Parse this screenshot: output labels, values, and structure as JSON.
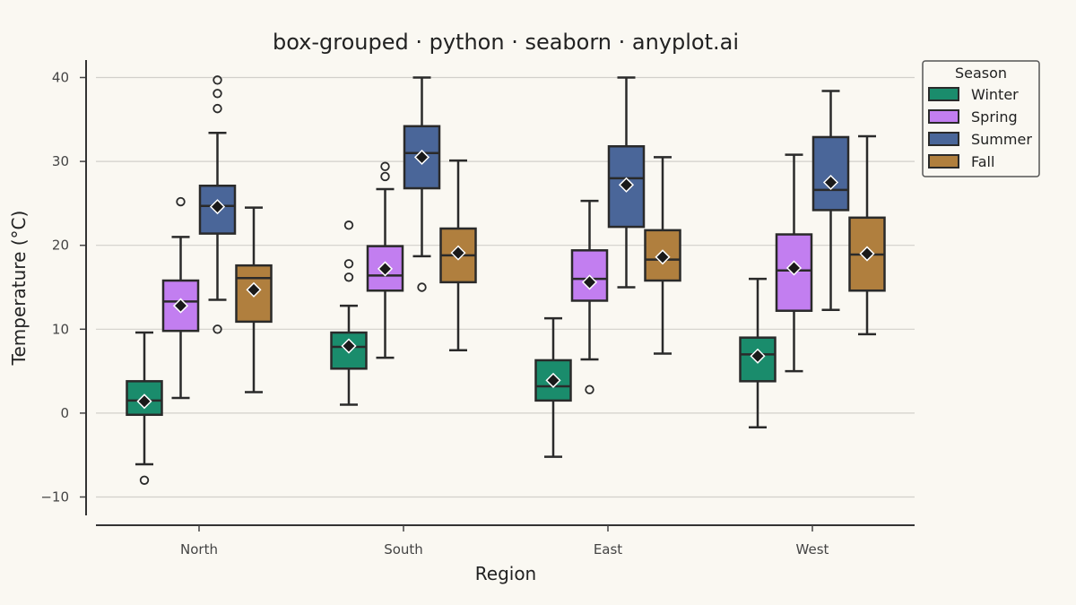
{
  "chart_data": {
    "type": "box",
    "title": "box-grouped · python · seaborn · anyplot.ai",
    "xlabel": "Region",
    "ylabel": "Temperature (°C)",
    "ylim": [
      -13.3,
      42
    ],
    "yticks": [
      -10,
      0,
      10,
      20,
      30,
      40
    ],
    "ytick_labels": [
      "−10",
      "0",
      "10",
      "20",
      "30",
      "40"
    ],
    "grid": "horizontal",
    "categories": [
      "North",
      "South",
      "East",
      "West"
    ],
    "legend": {
      "title": "Season",
      "placement": "top-right"
    },
    "series": [
      {
        "name": "Winter",
        "color": "#1a8c6c",
        "boxes": [
          {
            "whisker_low": -6.1,
            "q1": -0.2,
            "median": 1.5,
            "q3": 3.8,
            "whisker_high": 9.6,
            "mean": 1.4,
            "outliers": [
              -8.0
            ]
          },
          {
            "whisker_low": 1.0,
            "q1": 5.3,
            "median": 7.9,
            "q3": 9.6,
            "whisker_high": 12.8,
            "mean": 8.0,
            "outliers": [
              16.2,
              17.8,
              22.4
            ]
          },
          {
            "whisker_low": -5.2,
            "q1": 1.5,
            "median": 3.2,
            "q3": 6.3,
            "whisker_high": 11.3,
            "mean": 3.9,
            "outliers": []
          },
          {
            "whisker_low": -1.7,
            "q1": 3.8,
            "median": 7.0,
            "q3": 9.0,
            "whisker_high": 16.0,
            "mean": 6.8,
            "outliers": []
          }
        ]
      },
      {
        "name": "Spring",
        "color": "#c27ef0",
        "boxes": [
          {
            "whisker_low": 1.8,
            "q1": 9.8,
            "median": 13.3,
            "q3": 15.8,
            "whisker_high": 21.0,
            "mean": 12.8,
            "outliers": [
              25.2
            ]
          },
          {
            "whisker_low": 6.6,
            "q1": 14.6,
            "median": 16.4,
            "q3": 19.9,
            "whisker_high": 26.7,
            "mean": 17.2,
            "outliers": [
              28.2,
              29.4
            ]
          },
          {
            "whisker_low": 6.4,
            "q1": 13.4,
            "median": 16.0,
            "q3": 19.4,
            "whisker_high": 25.3,
            "mean": 15.6,
            "outliers": [
              2.8
            ]
          },
          {
            "whisker_low": 5.0,
            "q1": 12.2,
            "median": 17.0,
            "q3": 21.3,
            "whisker_high": 30.8,
            "mean": 17.3,
            "outliers": []
          }
        ]
      },
      {
        "name": "Summer",
        "color": "#4a6699",
        "boxes": [
          {
            "whisker_low": 13.5,
            "q1": 21.4,
            "median": 24.7,
            "q3": 27.1,
            "whisker_high": 33.4,
            "mean": 24.6,
            "outliers": [
              10.0,
              36.3,
              38.1,
              39.7
            ]
          },
          {
            "whisker_low": 18.7,
            "q1": 26.8,
            "median": 31.0,
            "q3": 34.2,
            "whisker_high": 40.0,
            "mean": 30.5,
            "outliers": [
              15.0
            ]
          },
          {
            "whisker_low": 15.0,
            "q1": 22.2,
            "median": 28.0,
            "q3": 31.8,
            "whisker_high": 40.0,
            "mean": 27.2,
            "outliers": []
          },
          {
            "whisker_low": 12.3,
            "q1": 24.2,
            "median": 26.6,
            "q3": 32.9,
            "whisker_high": 38.4,
            "mean": 27.5,
            "outliers": []
          }
        ]
      },
      {
        "name": "Fall",
        "color": "#b07f3e",
        "boxes": [
          {
            "whisker_low": 2.5,
            "q1": 10.9,
            "median": 16.1,
            "q3": 17.6,
            "whisker_high": 24.5,
            "mean": 14.7,
            "outliers": []
          },
          {
            "whisker_low": 7.5,
            "q1": 15.6,
            "median": 18.8,
            "q3": 22.0,
            "whisker_high": 30.1,
            "mean": 19.1,
            "outliers": []
          },
          {
            "whisker_low": 7.1,
            "q1": 15.8,
            "median": 18.3,
            "q3": 21.8,
            "whisker_high": 30.5,
            "mean": 18.6,
            "outliers": []
          },
          {
            "whisker_low": 9.4,
            "q1": 14.6,
            "median": 18.9,
            "q3": 23.3,
            "whisker_high": 33.0,
            "mean": 19.0,
            "outliers": []
          }
        ]
      }
    ]
  }
}
